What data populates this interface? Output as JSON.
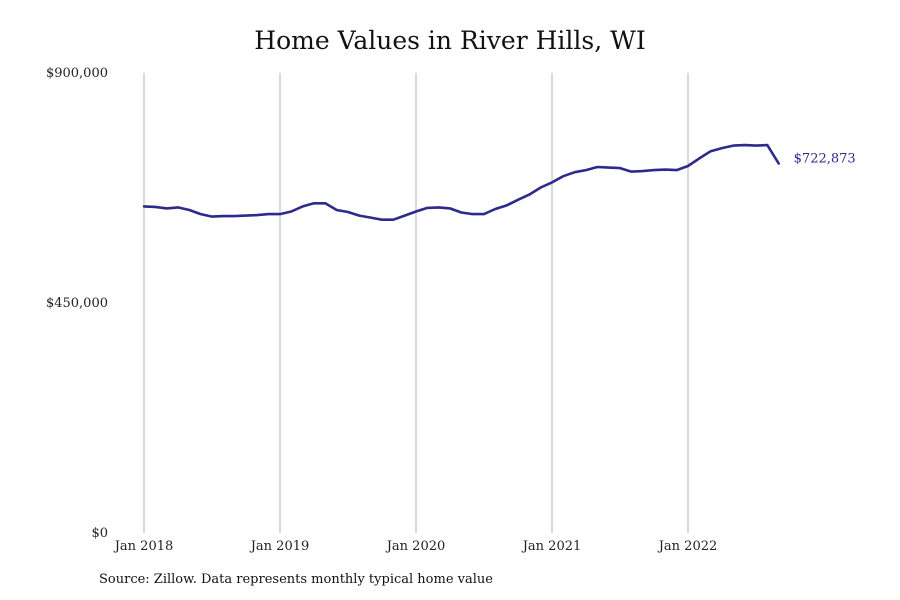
{
  "page": {
    "title": "Home Values in River Hills, WI",
    "source": "Source: Zillow. Data represents monthly typical home value"
  },
  "colors": {
    "line": "#2e2a8c",
    "grid": "#b5b5b5",
    "text": "#222222"
  },
  "chart_data": {
    "type": "line",
    "title": "Home Values in River Hills, WI",
    "xlabel": "",
    "ylabel": "",
    "ylim": [
      0,
      900000
    ],
    "y_ticks": [
      0,
      450000,
      900000
    ],
    "y_tick_labels": [
      "$0",
      "$450,000",
      "$900,000"
    ],
    "x_ticks": [
      "2018-01",
      "2019-01",
      "2020-01",
      "2021-01",
      "2022-01"
    ],
    "x_tick_labels": [
      "Jan 2018",
      "Jan 2019",
      "Jan 2020",
      "Jan 2021",
      "Jan 2022"
    ],
    "grid": "vertical lines at x ticks",
    "end_label": "$722,873",
    "series": [
      {
        "x": [
          "2018-01",
          "2018-02",
          "2018-03",
          "2018-04",
          "2018-05",
          "2018-06",
          "2018-07",
          "2018-08",
          "2018-09",
          "2018-10",
          "2018-11",
          "2018-12",
          "2019-01",
          "2019-02",
          "2019-03",
          "2019-04",
          "2019-05",
          "2019-06",
          "2019-07",
          "2019-08",
          "2019-09",
          "2019-10",
          "2019-11",
          "2019-12",
          "2020-01",
          "2020-02",
          "2020-03",
          "2020-04",
          "2020-05",
          "2020-06",
          "2020-07",
          "2020-08",
          "2020-09",
          "2020-10",
          "2020-11",
          "2020-12",
          "2021-01",
          "2021-02",
          "2021-03",
          "2021-04",
          "2021-05",
          "2021-06",
          "2021-07",
          "2021-08",
          "2021-09",
          "2021-10",
          "2021-11",
          "2021-12",
          "2022-01",
          "2022-02",
          "2022-03",
          "2022-04",
          "2022-05",
          "2022-06",
          "2022-07",
          "2022-08",
          "2022-09"
        ],
        "values": [
          639000,
          638000,
          635000,
          637000,
          632000,
          624000,
          619000,
          620000,
          620000,
          621000,
          622000,
          624000,
          624000,
          629000,
          639000,
          645000,
          645000,
          632000,
          628000,
          621000,
          617000,
          613000,
          613000,
          621000,
          629000,
          636000,
          637000,
          635000,
          627000,
          624000,
          624000,
          634000,
          641000,
          652000,
          662000,
          676000,
          686000,
          698000,
          706000,
          710000,
          716000,
          715000,
          714000,
          707000,
          708000,
          710000,
          711000,
          710000,
          718000,
          733000,
          747000,
          753000,
          758000,
          759000,
          758000,
          759000,
          722873
        ]
      }
    ]
  }
}
